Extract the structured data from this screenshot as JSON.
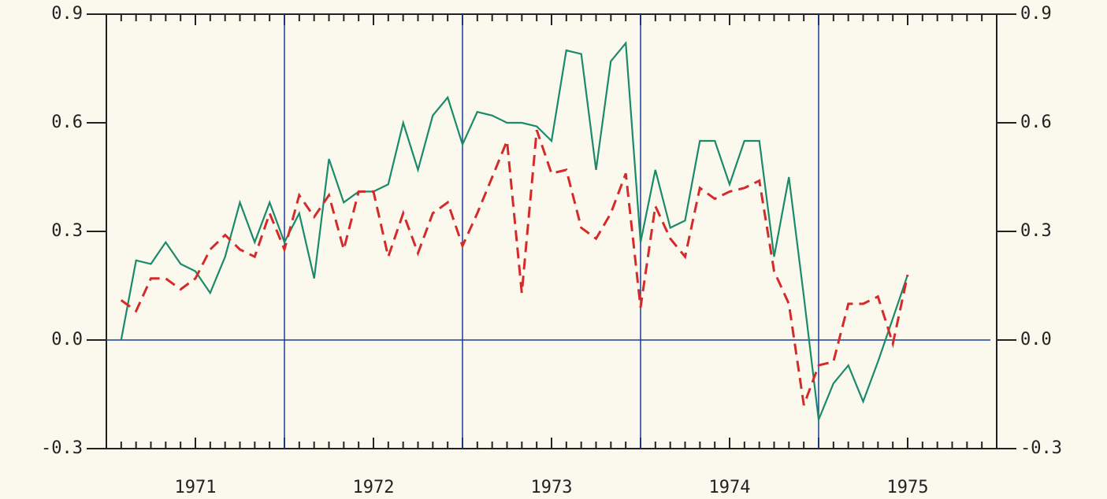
{
  "chart_data": {
    "type": "line",
    "x": [
      1971.083,
      1971.167,
      1971.25,
      1971.333,
      1971.417,
      1971.5,
      1971.583,
      1971.667,
      1971.75,
      1971.833,
      1971.917,
      1972,
      1972.083,
      1972.167,
      1972.25,
      1972.333,
      1972.417,
      1972.5,
      1972.583,
      1972.667,
      1972.75,
      1972.833,
      1972.917,
      1973,
      1973.083,
      1973.167,
      1973.25,
      1973.333,
      1973.417,
      1973.5,
      1973.583,
      1973.667,
      1973.75,
      1973.833,
      1973.917,
      1974,
      1974.083,
      1974.167,
      1974.25,
      1974.333,
      1974.417,
      1974.5,
      1974.583,
      1974.667,
      1974.75,
      1974.833,
      1974.917,
      1975,
      1975.083,
      1975.167,
      1975.25,
      1975.333,
      1975.417,
      1975.5
    ],
    "series": [
      {
        "color": "#1a8a6a",
        "dash": false,
        "values": [
          0,
          0.22,
          0.21,
          0.27,
          0.21,
          0.19,
          0.13,
          0.23,
          0.38,
          0.27,
          0.38,
          0.27,
          0.35,
          0.17,
          0.5,
          0.38,
          0.41,
          0.41,
          0.43,
          0.6,
          0.47,
          0.62,
          0.67,
          0.54,
          0.63,
          0.62,
          0.6,
          0.6,
          0.59,
          0.55,
          0.8,
          0.79,
          0.47,
          0.77,
          0.82,
          0.27,
          0.47,
          0.31,
          0.33,
          0.55,
          0.55,
          0.43,
          0.55,
          0.55,
          0.23,
          0.45,
          0.12,
          -0.22,
          -0.12,
          -0.07,
          -0.17,
          -0.06,
          0.06,
          0.18
        ]
      },
      {
        "color": "#d42a2a",
        "dash": true,
        "values": [
          0.11,
          0.08,
          0.17,
          0.17,
          0.14,
          0.17,
          0.25,
          0.29,
          0.25,
          0.23,
          0.35,
          0.25,
          0.4,
          0.34,
          0.4,
          0.25,
          0.41,
          0.41,
          0.23,
          0.35,
          0.24,
          0.35,
          0.38,
          0.26,
          0.35,
          0.45,
          0.55,
          0.13,
          0.58,
          0.46,
          0.47,
          0.31,
          0.28,
          0.35,
          0.46,
          0.09,
          0.37,
          0.28,
          0.23,
          0.42,
          0.39,
          0.41,
          0.42,
          0.44,
          0.19,
          0.1,
          -0.18,
          -0.07,
          -0.06,
          0.1,
          0.1,
          0.12,
          -0.01,
          0.18
        ]
      }
    ],
    "xlim": [
      1971,
      1976
    ],
    "xticks": [
      {
        "value": 1971.5,
        "label": "1971"
      },
      {
        "value": 1972.5,
        "label": "1972"
      },
      {
        "value": 1973.5,
        "label": "1973"
      },
      {
        "value": 1974.5,
        "label": "1974"
      },
      {
        "value": 1975.5,
        "label": "1975"
      }
    ],
    "xgrid": [
      1972,
      1973,
      1974,
      1975
    ],
    "ylim": [
      -0.3,
      0.9
    ],
    "yticks": [
      -0.3,
      {
        "value": 0,
        "label": "0.0"
      },
      0.3,
      0.6,
      0.9
    ],
    "y2lim": [
      -0.3,
      0.9
    ],
    "y2ticks": [
      -0.3,
      {
        "value": 0,
        "label": "0.0"
      },
      0.3,
      0.6,
      0.9
    ]
  }
}
